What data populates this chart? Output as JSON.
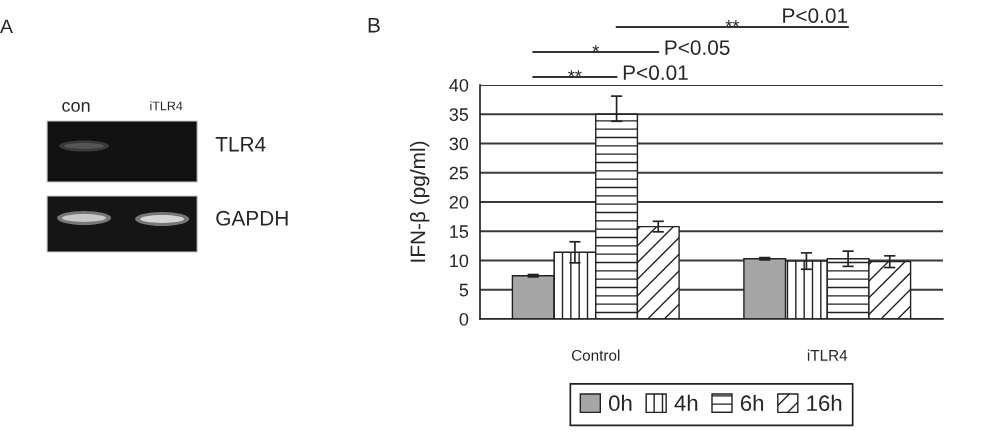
{
  "chart_data": [
    {
      "type": "other",
      "title": "A",
      "annotations": [
        "con",
        "iTLR4",
        "TLR4",
        "GAPDH"
      ]
    },
    {
      "type": "bar",
      "title": "B",
      "ylabel": "IFN-β (pg/ml)",
      "categories": [
        "Control",
        "iTLR4"
      ],
      "series": [
        {
          "name": "0h",
          "color": "#a6a6a6",
          "values": [
            7.4,
            10.3
          ],
          "errors": [
            0.2,
            0.2
          ]
        },
        {
          "name": "4h",
          "color": "#222222",
          "values": [
            11.4,
            9.9
          ],
          "errors": [
            1.8,
            1.4
          ]
        },
        {
          "name": "6h",
          "color": "#222222",
          "values": [
            35,
            10.3
          ],
          "errors": [
            [
              33.8,
              38.1
            ],
            1.3
          ]
        },
        {
          "name": "16h",
          "color": "#222222",
          "values": [
            15.8,
            9.8
          ],
          "errors": [
            0.9,
            1.0
          ]
        }
      ],
      "ylim": [
        0,
        40
      ],
      "yticks": [
        0,
        5,
        10,
        15,
        20,
        25,
        30,
        35,
        40
      ],
      "grid": "y",
      "legend": "bottom",
      "annotations": [
        "**",
        "P<0.01",
        "*",
        "P<0.05",
        "**",
        "P<0.01"
      ]
    }
  ]
}
